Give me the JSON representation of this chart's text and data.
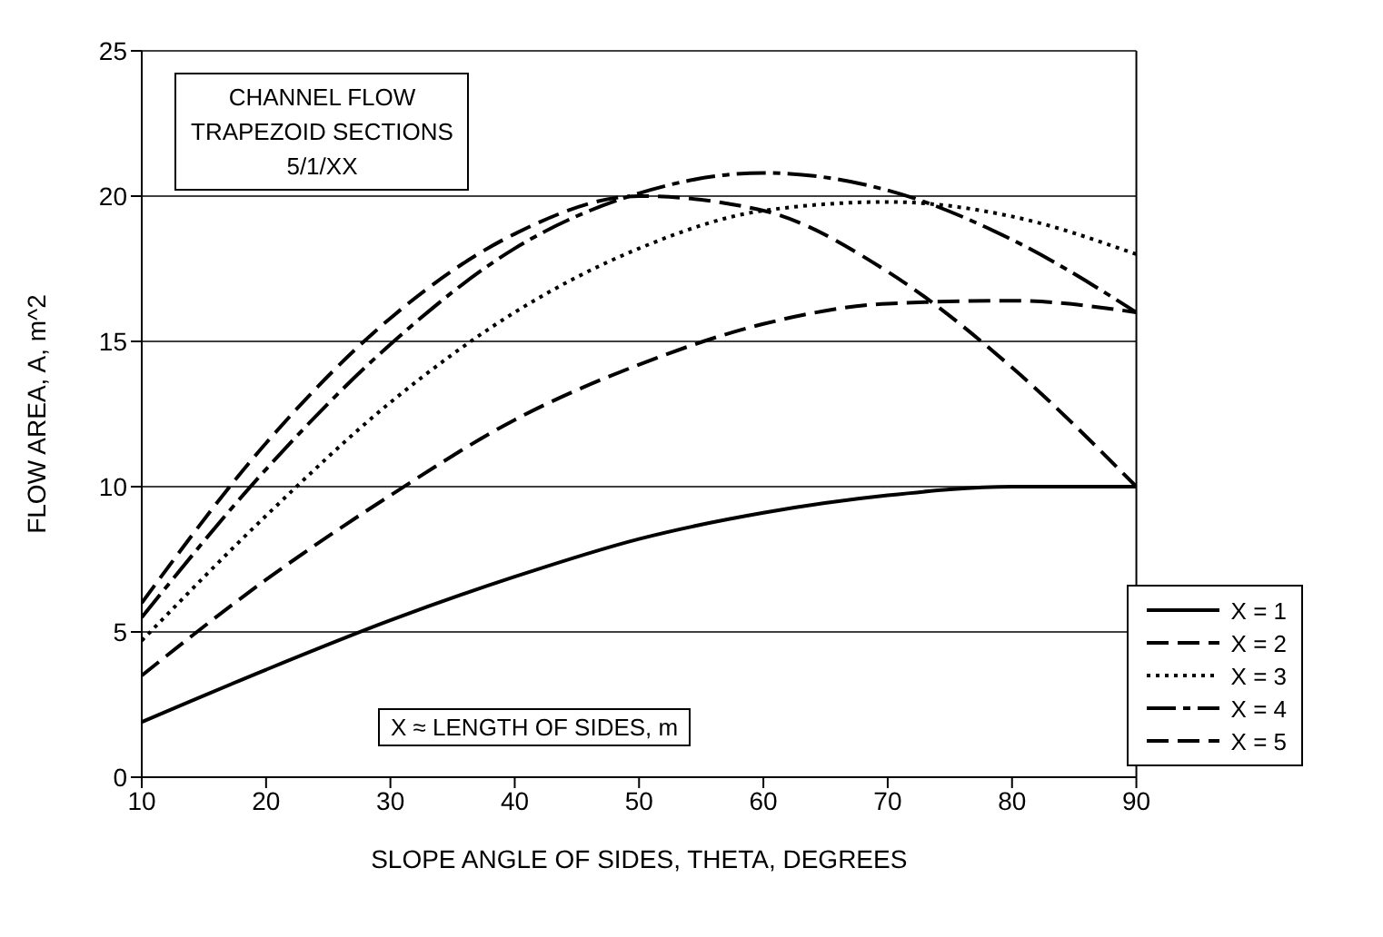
{
  "chart_data": {
    "type": "line",
    "xlabel": "SLOPE ANGLE OF SIDES, THETA, DEGREES",
    "ylabel": "FLOW AREA, A, m^2",
    "x": [
      10,
      20,
      30,
      40,
      50,
      60,
      70,
      80,
      90
    ],
    "series": [
      {
        "name": "X = 1",
        "color": "#000000",
        "line_style": "solid",
        "values": [
          1.9,
          3.7,
          5.4,
          6.9,
          8.2,
          9.1,
          9.7,
          10.0,
          10.0
        ]
      },
      {
        "name": "X = 2",
        "color": "#000000",
        "line_style": "dashed",
        "values": [
          3.5,
          6.8,
          9.7,
          12.3,
          14.2,
          15.6,
          16.3,
          16.4,
          16.0
        ]
      },
      {
        "name": "X = 3",
        "color": "#000000",
        "line_style": "dotted",
        "values": [
          4.7,
          9.0,
          12.9,
          16.0,
          18.2,
          19.5,
          19.8,
          19.3,
          18.0
        ]
      },
      {
        "name": "X = 4",
        "color": "#000000",
        "line_style": "dashed",
        "values": [
          5.5,
          10.6,
          14.9,
          18.2,
          20.1,
          20.8,
          20.2,
          18.5,
          16.0
        ]
      },
      {
        "name": "X = 5",
        "color": "#000000",
        "line_style": "dashed",
        "values": [
          6.0,
          11.5,
          15.8,
          18.7,
          20.0,
          19.5,
          17.4,
          14.1,
          10.0
        ]
      }
    ],
    "xlim": [
      10,
      90
    ],
    "xticks": [
      10,
      20,
      30,
      40,
      50,
      60,
      70,
      80,
      90
    ],
    "ylim": [
      0,
      25
    ],
    "yticks": [
      0,
      5,
      10,
      15,
      20,
      25
    ],
    "grid": "y",
    "legend": "bottom right",
    "marker": "none",
    "annotations": [
      "CHANNEL FLOW\nTRAPEZOID SECTIONS\n5/1/XX",
      "X ≈ LENGTH OF SIDES, m"
    ]
  }
}
